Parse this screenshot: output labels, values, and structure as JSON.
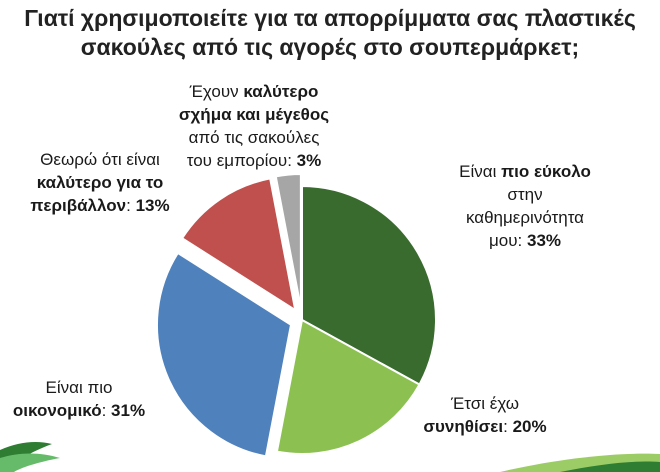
{
  "title_lines": [
    "Γιατί χρησιμοποιείτε για τα απορρίμματα σας πλαστικές",
    "σακούλες από τις αγορές στο σουπερμάρκετ;"
  ],
  "chart_data": {
    "type": "pie",
    "title": "Γιατί χρησιμοποιείτε για τα απορρίμματα σας πλαστικές σακούλες από τις αγορές στο σουπερμάρκετ;",
    "categories": [
      "Είναι πιο εύκολο στην καθημερινότητα μου",
      "Έτσι έχω συνηθίσει",
      "Είναι πιο οικονομικό",
      "Θεωρώ ότι είναι καλύτερο για το περιβάλλον",
      "Έχουν καλύτερο σχήμα και μέγεθος από τις σακούλες του εμπορίου"
    ],
    "values": [
      33,
      20,
      31,
      13,
      3
    ],
    "unit": "%",
    "colors": [
      "#3a6b2e",
      "#8cc152",
      "#4f81bd",
      "#c0504d",
      "#a6a6a6"
    ],
    "exploded": [
      false,
      false,
      true,
      true,
      true
    ],
    "labels": [
      {
        "lines": [
          [
            "Είναι ",
            ""
          ],
          [
            "",
            "πιο εύκολο"
          ],
          [
            "στην",
            ""
          ],
          [
            "καθημερινότητα",
            ""
          ],
          [
            "μου: ",
            ""
          ],
          [
            "",
            "33%"
          ]
        ]
      },
      {
        "lines": [
          [
            "Έτσι έχω",
            ""
          ],
          [
            "",
            "συνηθίσει"
          ],
          [
            ": ",
            ""
          ],
          [
            "",
            "20%"
          ]
        ]
      },
      {
        "lines": [
          [
            "Είναι πιο",
            ""
          ],
          [
            "",
            "οικονομικό"
          ],
          [
            ": ",
            ""
          ],
          [
            "",
            "31%"
          ]
        ]
      },
      {
        "lines": [
          [
            "Θεωρώ ότι είναι",
            ""
          ],
          [
            "",
            "καλύτερο για το"
          ],
          [
            "",
            "περιβάλλον"
          ],
          [
            ": ",
            ""
          ],
          [
            "",
            "13%"
          ]
        ]
      },
      {
        "lines": [
          [
            "Έχουν ",
            ""
          ],
          [
            "",
            "καλύτερο"
          ],
          [
            "",
            "σχήμα και μέγεθος"
          ],
          [
            "από τις σακούλες",
            ""
          ],
          [
            "του εμπορίου: ",
            ""
          ],
          [
            "",
            "3%"
          ]
        ]
      }
    ]
  }
}
